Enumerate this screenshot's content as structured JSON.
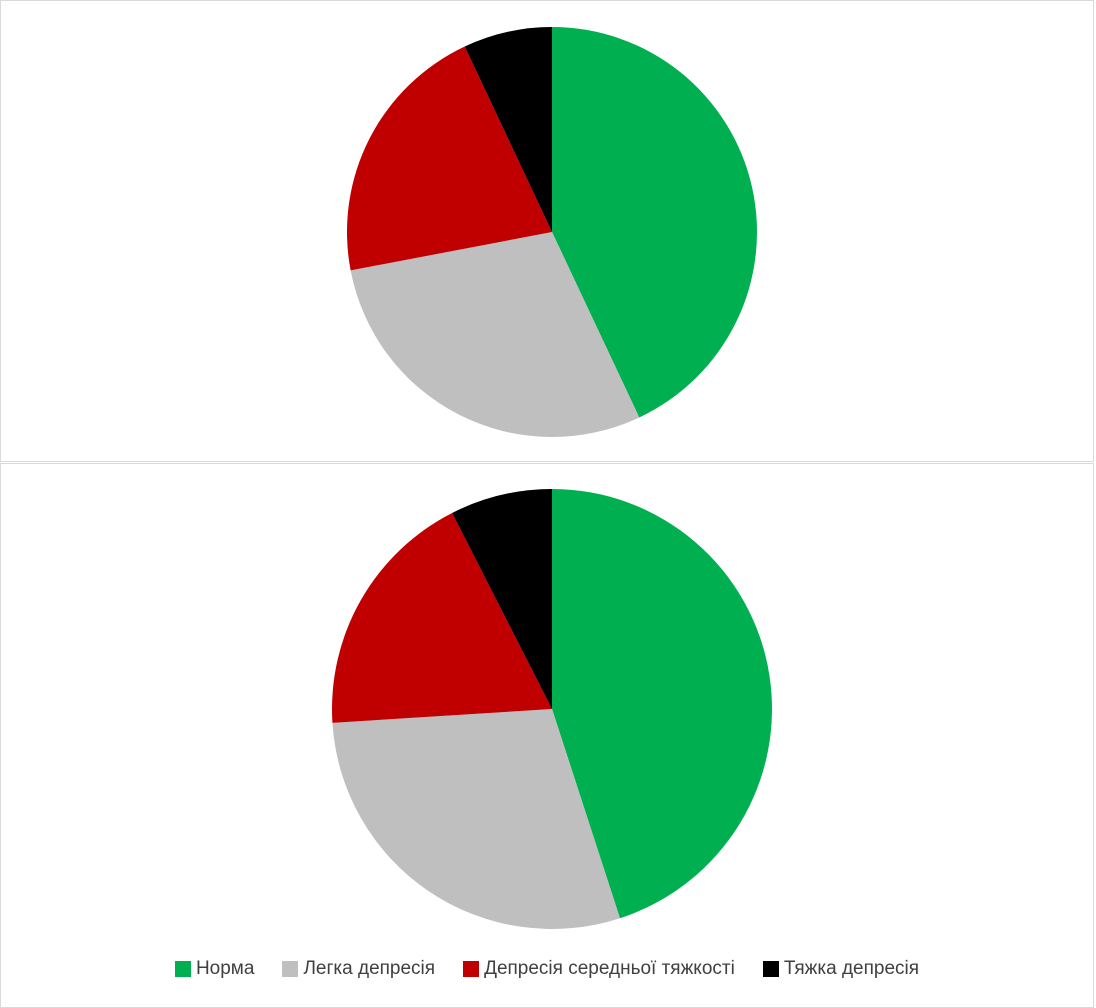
{
  "chart_data": [
    {
      "type": "pie",
      "categories": [
        "Норма",
        "Легка депресія",
        "Депресія середньої тяжкості",
        "Тяжка депресія"
      ],
      "values": [
        43,
        29,
        21,
        7
      ],
      "colors": [
        "#00b050",
        "#bfbfbf",
        "#c00000",
        "#000000"
      ],
      "start": "top",
      "direction": "clockwise",
      "legend": "none"
    },
    {
      "type": "pie",
      "categories": [
        "Норма",
        "Легка депресія",
        "Депресія середньої тяжкості",
        "Тяжка депресія"
      ],
      "values": [
        45,
        29,
        18.5,
        7.5
      ],
      "colors": [
        "#00b050",
        "#bfbfbf",
        "#c00000",
        "#000000"
      ],
      "start": "top",
      "direction": "clockwise",
      "legend": "bottom"
    }
  ],
  "legend": {
    "items": [
      {
        "label": "Норма",
        "color": "#00b050"
      },
      {
        "label": "Легка депресія",
        "color": "#bfbfbf"
      },
      {
        "label": "Депресія середньої тяжкості",
        "color": "#c00000"
      },
      {
        "label": "Тяжка депресія",
        "color": "#000000"
      }
    ]
  }
}
